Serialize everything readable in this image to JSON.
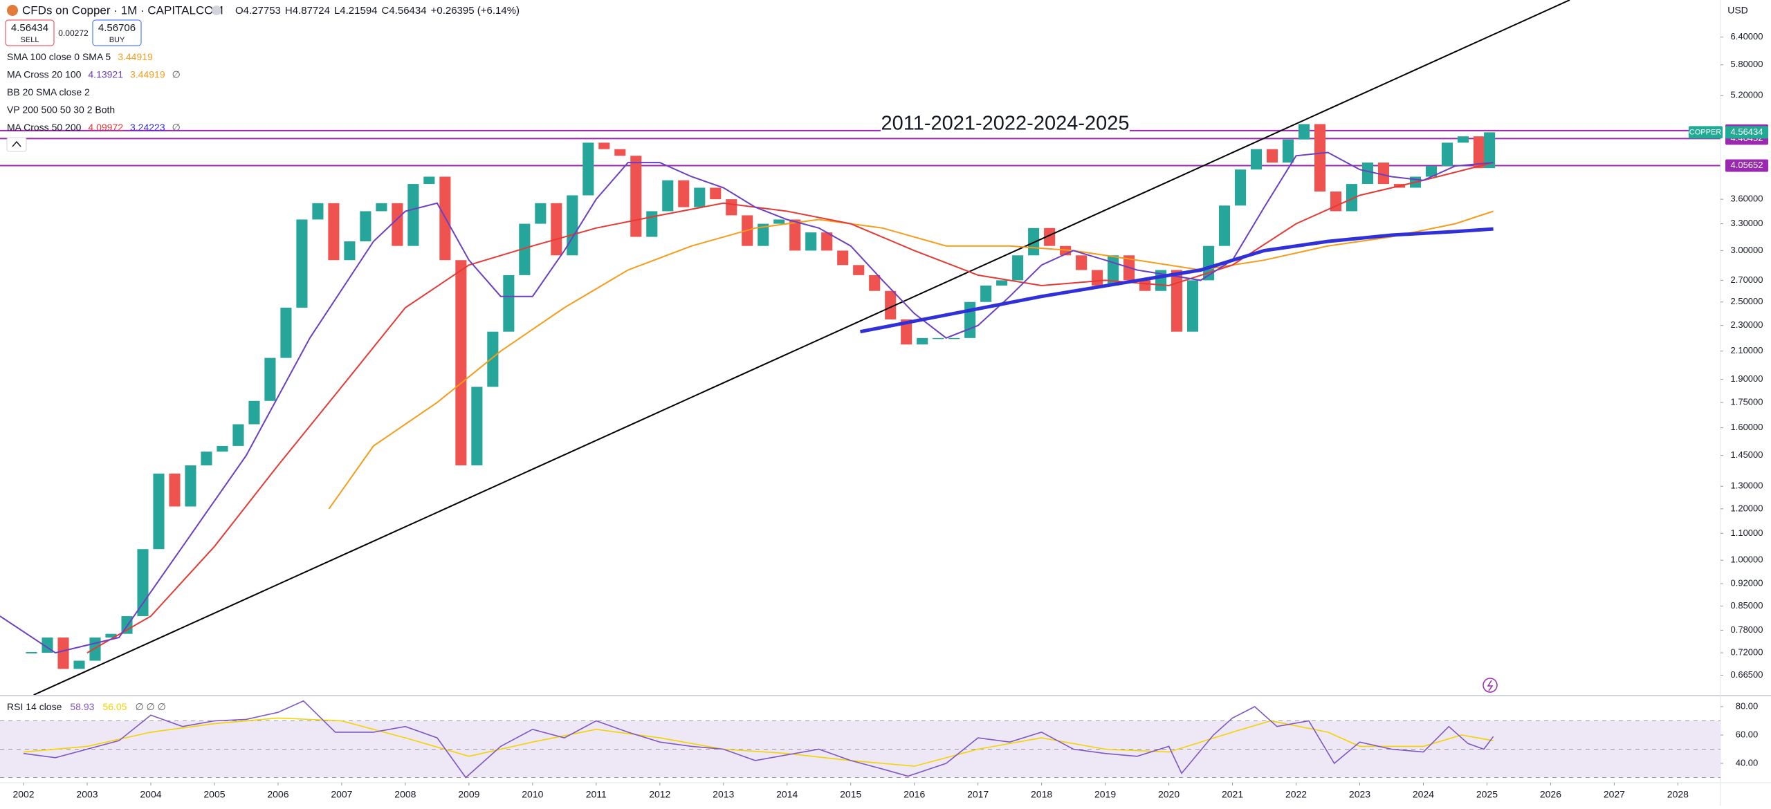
{
  "header": {
    "title": "CFDs on Copper · 1M · CAPITALCOM",
    "ohlc": [
      "O4.27753",
      "H4.87724",
      "L4.21594",
      "C4.56434",
      "+0.26395 (+6.14%)"
    ],
    "sell_price": "4.56434",
    "sell": "SELL",
    "spread": "0.00272",
    "buy_price": "4.56706",
    "buy": "BUY",
    "currency": "USD",
    "indicators": [
      {
        "name": "SMA 100 close 0 SMA 5",
        "values": [
          "3.44919"
        ],
        "colors": [
          "#f59c1a"
        ]
      },
      {
        "name": "MA Cross 20 100",
        "values": [
          "4.13921",
          "3.44919",
          "∅"
        ],
        "colors": [
          "#6b3fc1",
          "#f59c1a",
          "#555555"
        ]
      },
      {
        "name": "BB 20 SMA close 2",
        "values": [],
        "colors": []
      },
      {
        "name": "VP 200 500 50 30 2 Both",
        "values": [],
        "colors": []
      },
      {
        "name": "MA Cross 50 200",
        "values": [
          "4.09972",
          "3.24223",
          "∅"
        ],
        "colors": [
          "#e53935",
          "#3030d8",
          "#555555"
        ]
      }
    ]
  },
  "chart_data": [
    {
      "type": "candlestick",
      "log_scale": true,
      "grid": false,
      "up_color": "#26a69a",
      "down_color": "#ef5350",
      "annotation": "2011-2021-2022-2024-2025",
      "symbol_label": "COPPER",
      "xlim": [
        2001.63,
        2028.67
      ],
      "xticks": [
        2002,
        2003,
        2004,
        2005,
        2006,
        2007,
        2008,
        2009,
        2010,
        2011,
        2012,
        2013,
        2014,
        2015,
        2016,
        2017,
        2018,
        2019,
        2020,
        2021,
        2022,
        2023,
        2024,
        2025,
        2026,
        2027,
        2028
      ],
      "ylim": [
        0.62,
        7.3
      ],
      "yticks": [
        {
          "value": 6.4,
          "label": "6.40000"
        },
        {
          "value": 5.8,
          "label": "5.80000"
        },
        {
          "value": 5.2,
          "label": "5.20000"
        },
        {
          "value": 3.6,
          "label": "3.60000"
        },
        {
          "value": 3.3,
          "label": "3.30000"
        },
        {
          "value": 3,
          "label": "3.00000"
        },
        {
          "value": 2.7,
          "label": "2.70000"
        },
        {
          "value": 2.5,
          "label": "2.50000"
        },
        {
          "value": 2.3,
          "label": "2.30000"
        },
        {
          "value": 2.1,
          "label": "2.10000"
        },
        {
          "value": 1.9,
          "label": "1.90000"
        },
        {
          "value": 1.75,
          "label": "1.75000"
        },
        {
          "value": 1.6,
          "label": "1.60000"
        },
        {
          "value": 1.45,
          "label": "1.45000"
        },
        {
          "value": 1.3,
          "label": "1.30000"
        },
        {
          "value": 1.2,
          "label": "1.20000"
        },
        {
          "value": 1.1,
          "label": "1.10000"
        },
        {
          "value": 1,
          "label": "1.00000"
        },
        {
          "value": 0.92,
          "label": "0.92000"
        },
        {
          "value": 0.85,
          "label": "0.85000"
        },
        {
          "value": 0.78,
          "label": "0.78000"
        },
        {
          "value": 0.72,
          "label": "0.72000"
        },
        {
          "value": 0.665,
          "label": "0.66500"
        }
      ],
      "x": [
        2002.125,
        2002.375,
        2002.625,
        2002.875,
        2003.125,
        2003.375,
        2003.625,
        2003.875,
        2004.125,
        2004.375,
        2004.625,
        2004.875,
        2005.125,
        2005.375,
        2005.625,
        2005.875,
        2006.125,
        2006.375,
        2006.625,
        2006.875,
        2007.125,
        2007.375,
        2007.625,
        2007.875,
        2008.125,
        2008.375,
        2008.625,
        2008.875,
        2009.125,
        2009.375,
        2009.625,
        2009.875,
        2010.125,
        2010.375,
        2010.625,
        2010.875,
        2011.125,
        2011.375,
        2011.625,
        2011.875,
        2012.125,
        2012.375,
        2012.625,
        2012.875,
        2013.125,
        2013.375,
        2013.625,
        2013.875,
        2014.125,
        2014.375,
        2014.625,
        2014.875,
        2015.125,
        2015.375,
        2015.625,
        2015.875,
        2016.125,
        2016.375,
        2016.625,
        2016.875,
        2017.125,
        2017.375,
        2017.625,
        2017.875,
        2018.125,
        2018.375,
        2018.625,
        2018.875,
        2019.125,
        2019.375,
        2019.625,
        2019.875,
        2020.125,
        2020.375,
        2020.625,
        2020.875,
        2021.125,
        2021.375,
        2021.625,
        2021.875,
        2022.125,
        2022.375,
        2022.625,
        2022.875,
        2023.125,
        2023.375,
        2023.625,
        2023.875,
        2024.125,
        2024.375,
        2024.625,
        2024.875,
        2025.04
      ],
      "values": [
        0.72,
        0.76,
        0.68,
        0.7,
        0.76,
        0.77,
        0.82,
        1.04,
        1.36,
        1.21,
        1.4,
        1.47,
        1.5,
        1.62,
        1.76,
        2.05,
        2.45,
        3.35,
        3.55,
        2.9,
        3.1,
        3.45,
        3.55,
        3.05,
        3.8,
        3.9,
        2.9,
        1.4,
        1.85,
        2.25,
        2.75,
        3.3,
        3.55,
        2.95,
        3.65,
        4.4,
        4.3,
        4.2,
        3.15,
        3.45,
        3.85,
        3.5,
        3.75,
        3.6,
        3.4,
        3.05,
        3.3,
        3.35,
        3,
        3.2,
        3,
        2.85,
        2.75,
        2.6,
        2.35,
        2.15,
        2.2,
        2.2,
        2.2,
        2.5,
        2.65,
        2.7,
        2.95,
        3.25,
        3.05,
        2.95,
        2.8,
        2.65,
        2.95,
        2.7,
        2.6,
        2.8,
        2.25,
        2.7,
        3.05,
        3.52,
        4,
        4.3,
        4.1,
        4.45,
        4.7,
        3.7,
        3.45,
        3.8,
        4.1,
        3.8,
        3.75,
        3.9,
        4.05,
        4.4,
        4.5,
        4.02,
        4.56434
      ],
      "levels": [
        {
          "value": 4.59201,
          "color": "#9c27b0"
        },
        {
          "value": 4.46452,
          "color": "#9c27b0"
        },
        {
          "value": 4.05652,
          "color": "#9c27b0"
        }
      ],
      "last_color": "#22ab94",
      "overlays": [
        {
          "color": "#000000",
          "bold": false,
          "x": [
            2002.16,
            2026.3
          ],
          "values": [
            0.62,
            7.3
          ]
        },
        {
          "color": "#f59c1a",
          "bold": false,
          "x": [
            2006.8,
            2007.5,
            2008.5,
            2009.5,
            2010.5,
            2011.5,
            2012.5,
            2013.5,
            2014.5,
            2015.5,
            2016.5,
            2017.5,
            2018.5,
            2019.5,
            2020.5,
            2021.5,
            2022.5,
            2023.5,
            2024.5,
            2025.1
          ],
          "values": [
            1.2,
            1.5,
            1.75,
            2.1,
            2.45,
            2.8,
            3.05,
            3.25,
            3.35,
            3.25,
            3.05,
            3.05,
            3,
            2.9,
            2.8,
            2.9,
            3.05,
            3.15,
            3.3,
            3.45
          ]
        },
        {
          "color": "#e53935",
          "bold": false,
          "x": [
            2003,
            2004,
            2005,
            2006,
            2007,
            2008,
            2009,
            2010,
            2011,
            2012,
            2013,
            2014,
            2015,
            2016,
            2017,
            2018,
            2019,
            2020,
            2021,
            2022,
            2023,
            2024,
            2025.1
          ],
          "values": [
            0.72,
            0.82,
            1.05,
            1.4,
            1.85,
            2.45,
            2.85,
            3.05,
            3.25,
            3.4,
            3.55,
            3.45,
            3.3,
            3,
            2.75,
            2.65,
            2.7,
            2.65,
            2.85,
            3.3,
            3.65,
            3.85,
            4.1
          ]
        },
        {
          "color": "#6b3fc1",
          "bold": false,
          "x": [
            2001.63,
            2002.5,
            2003.5,
            2004.5,
            2005.5,
            2006.5,
            2007.5,
            2008,
            2008.5,
            2009,
            2009.5,
            2010,
            2010.5,
            2011,
            2011.5,
            2012,
            2012.5,
            2013,
            2013.5,
            2014,
            2014.5,
            2015,
            2015.5,
            2016,
            2016.5,
            2017,
            2017.5,
            2018,
            2018.5,
            2019,
            2019.5,
            2020,
            2020.5,
            2021,
            2021.5,
            2022,
            2022.5,
            2023,
            2023.5,
            2024,
            2024.5,
            2025.1
          ],
          "values": [
            0.82,
            0.72,
            0.76,
            1.05,
            1.45,
            2.2,
            3.1,
            3.45,
            3.55,
            2.9,
            2.55,
            2.55,
            3,
            3.6,
            4.1,
            4.1,
            3.9,
            3.75,
            3.5,
            3.35,
            3.25,
            3.05,
            2.7,
            2.4,
            2.2,
            2.3,
            2.55,
            2.85,
            3,
            2.9,
            2.8,
            2.75,
            2.7,
            2.9,
            3.5,
            4.2,
            4.25,
            4,
            3.9,
            3.85,
            4.05,
            4.1
          ]
        },
        {
          "color": "#3030d8",
          "bold": true,
          "x": [
            2015.15,
            2018,
            2020.5,
            2021.5,
            2022.5,
            2023.5,
            2024.5,
            2025.1
          ],
          "values": [
            2.25,
            2.55,
            2.8,
            3,
            3.1,
            3.17,
            3.21,
            3.24
          ]
        }
      ]
    },
    {
      "type": "line",
      "title": "RSI 14 close",
      "legend_values": [
        "58.93",
        "56.05",
        "∅ ∅ ∅"
      ],
      "xlim": [
        2001.63,
        2028.67
      ],
      "ylim": [
        28.8,
        86.8
      ],
      "band": [
        30,
        70
      ],
      "band_color": "#ede7f6",
      "levels": [
        70,
        50,
        30
      ],
      "yticks": [
        {
          "value": 80,
          "label": "80.00"
        },
        {
          "value": 60,
          "label": "60.00"
        },
        {
          "value": 40,
          "label": "40.00"
        }
      ],
      "series": [
        {
          "color": "#7e57c2",
          "x": [
            2002,
            2002.5,
            2003,
            2003.5,
            2004,
            2004.5,
            2005,
            2005.5,
            2006,
            2006.4,
            2006.9,
            2007.5,
            2008,
            2008.5,
            2008.95,
            2009.5,
            2010,
            2010.5,
            2011,
            2011.5,
            2012,
            2012.5,
            2013,
            2013.5,
            2014,
            2014.5,
            2015,
            2015.5,
            2015.9,
            2016.5,
            2017,
            2017.5,
            2018,
            2018.5,
            2019,
            2019.5,
            2020,
            2020.2,
            2020.7,
            2021,
            2021.35,
            2021.7,
            2022.2,
            2022.6,
            2023,
            2023.5,
            2024,
            2024.4,
            2024.7,
            2024.95,
            2025.1
          ],
          "values": [
            47,
            44,
            50,
            56,
            74,
            66,
            70,
            71,
            76,
            84,
            62,
            62,
            66,
            58,
            30,
            52,
            64,
            58,
            70,
            62,
            55,
            52,
            50,
            42,
            46,
            50,
            42,
            36,
            31,
            40,
            58,
            55,
            62,
            50,
            47,
            45,
            52,
            33,
            60,
            72,
            80,
            66,
            70,
            40,
            55,
            50,
            48,
            66,
            54,
            50,
            58.93
          ]
        },
        {
          "color": "#f5d300",
          "x": [
            2002,
            2003,
            2004,
            2005,
            2006,
            2007,
            2008,
            2009,
            2010,
            2011,
            2012,
            2013,
            2014,
            2015,
            2016,
            2017,
            2018,
            2019,
            2020,
            2021,
            2021.6,
            2022.5,
            2023,
            2024,
            2024.6,
            2025.1
          ],
          "values": [
            48,
            52,
            62,
            68,
            72,
            70,
            58,
            45,
            55,
            64,
            58,
            50,
            47,
            42,
            38,
            50,
            58,
            50,
            48,
            62,
            70,
            62,
            52,
            52,
            60,
            56.05
          ]
        }
      ]
    }
  ]
}
